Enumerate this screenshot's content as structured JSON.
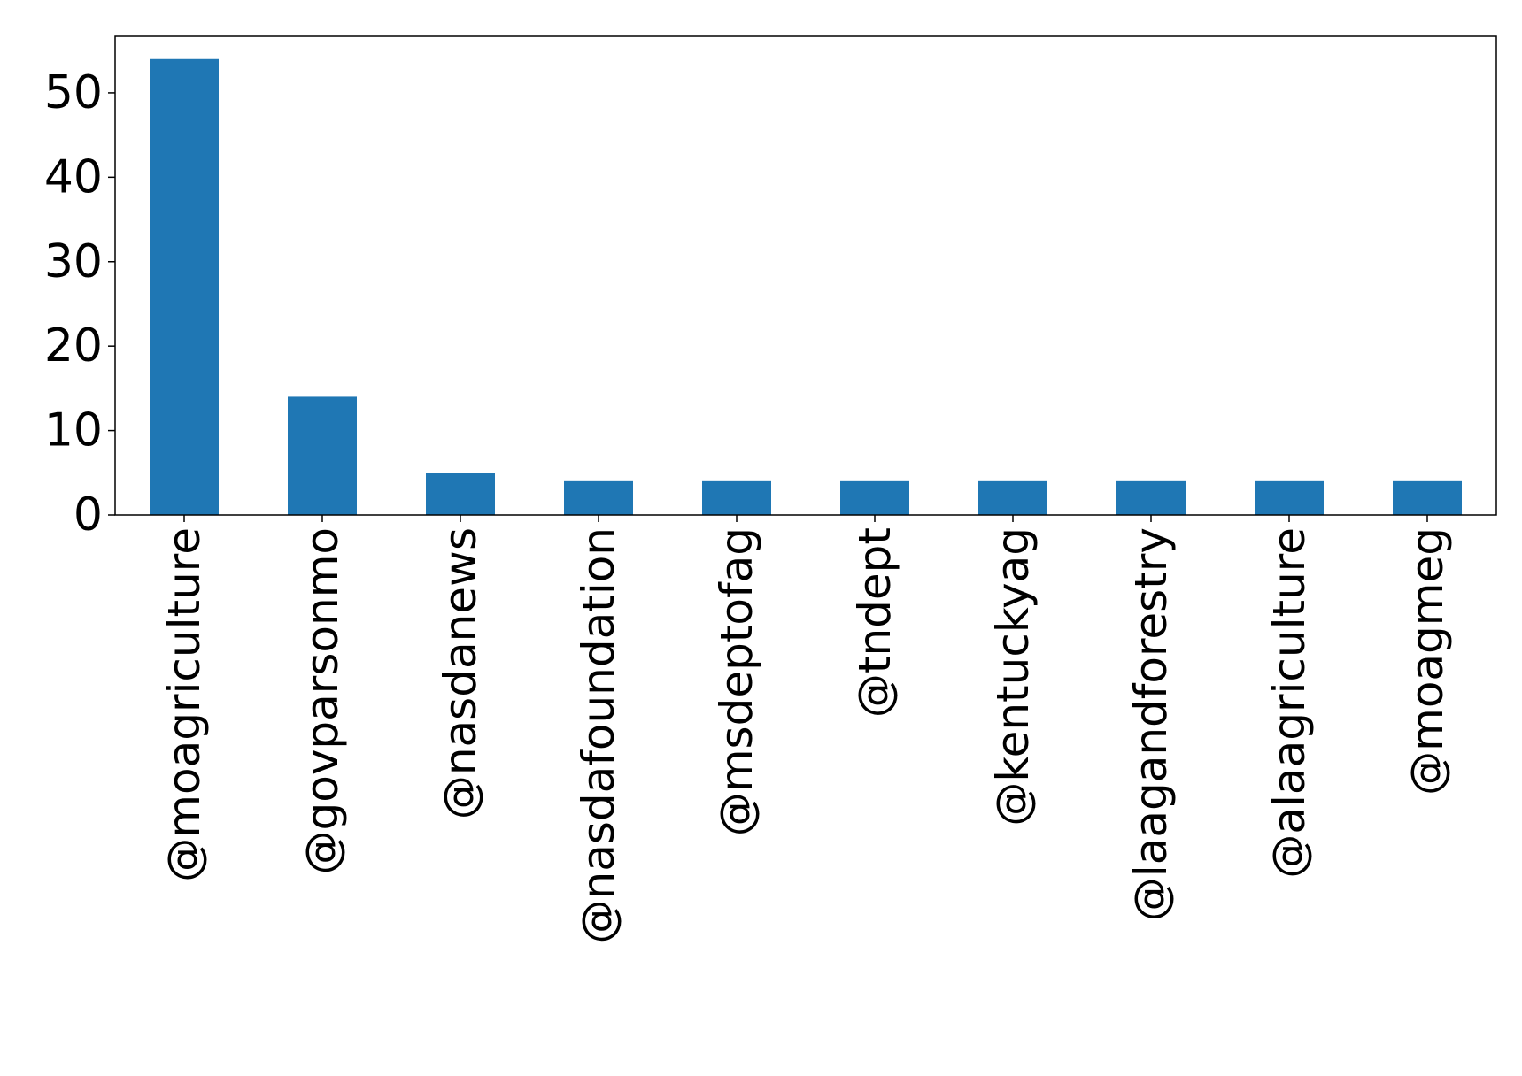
{
  "chart_data": {
    "type": "bar",
    "title": "",
    "xlabel": "",
    "ylabel": "",
    "categories": [
      "@moagriculture",
      "@govparsonmo",
      "@nasdanews",
      "@nasdafoundation",
      "@msdeptofag",
      "@tndept",
      "@kentuckyag",
      "@laagandforestry",
      "@alaagriculture",
      "@moagmeg"
    ],
    "values": [
      54,
      14,
      5,
      4,
      4,
      4,
      4,
      4,
      4,
      4
    ],
    "ylim": [
      0,
      56.7
    ],
    "yticks": [
      0,
      10,
      20,
      30,
      40,
      50
    ],
    "grid": false,
    "legend": "none",
    "bar_color": "#1f77b4"
  }
}
